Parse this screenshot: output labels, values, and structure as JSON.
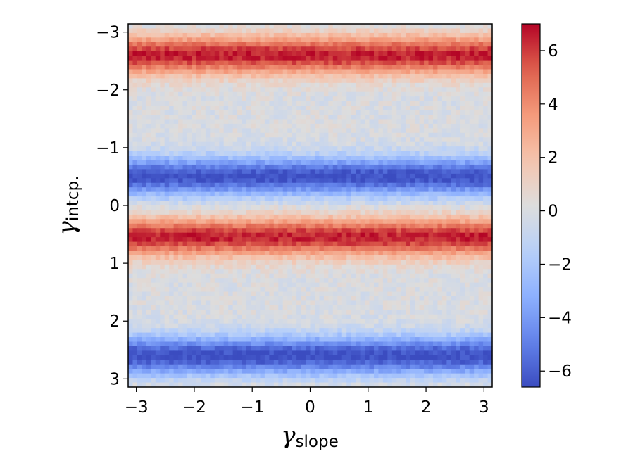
{
  "chart_data": {
    "type": "heatmap",
    "title": "",
    "xlabel": {
      "symbol": "γ",
      "subscript": "slope"
    },
    "ylabel": {
      "symbol": "γ",
      "subscript": "intcp."
    },
    "xlim": [
      -3.14159,
      3.14159
    ],
    "ylim": [
      -3.14159,
      3.14159
    ],
    "y_inverted": true,
    "x_ticks": [
      {
        "value": -3,
        "label": "−3"
      },
      {
        "value": -2,
        "label": "−2"
      },
      {
        "value": -1,
        "label": "−1"
      },
      {
        "value": 0,
        "label": "0"
      },
      {
        "value": 1,
        "label": "1"
      },
      {
        "value": 2,
        "label": "2"
      },
      {
        "value": 3,
        "label": "3"
      }
    ],
    "y_ticks": [
      {
        "value": -3,
        "label": "−3"
      },
      {
        "value": -2,
        "label": "−2"
      },
      {
        "value": -1,
        "label": "−1"
      },
      {
        "value": 0,
        "label": "0"
      },
      {
        "value": 1,
        "label": "1"
      },
      {
        "value": 2,
        "label": "2"
      },
      {
        "value": 3,
        "label": "3"
      }
    ],
    "grid": {
      "nx": 80,
      "ny": 80
    },
    "field": {
      "description_values": "value depends on intercept only; bands repeat with period pi",
      "amplitude": 6.5,
      "peak_positive_intercepts": [
        -2.6,
        0.55
      ],
      "peak_negative_intercepts": [
        -0.5,
        2.6
      ]
    },
    "colorbar": {
      "colormap": "coolwarm",
      "vmin": -6.6,
      "vmax": 7.0,
      "ticks": [
        {
          "value": 6,
          "label": "6"
        },
        {
          "value": 4,
          "label": "4"
        },
        {
          "value": 2,
          "label": "2"
        },
        {
          "value": 0,
          "label": "0"
        },
        {
          "value": -2,
          "label": "−2"
        },
        {
          "value": -4,
          "label": "−4"
        },
        {
          "value": -6,
          "label": "−6"
        }
      ]
    },
    "colors": {
      "coolwarm_low": "#3b4cc0",
      "coolwarm_mid": "#dddddd",
      "coolwarm_high": "#b40426"
    }
  }
}
